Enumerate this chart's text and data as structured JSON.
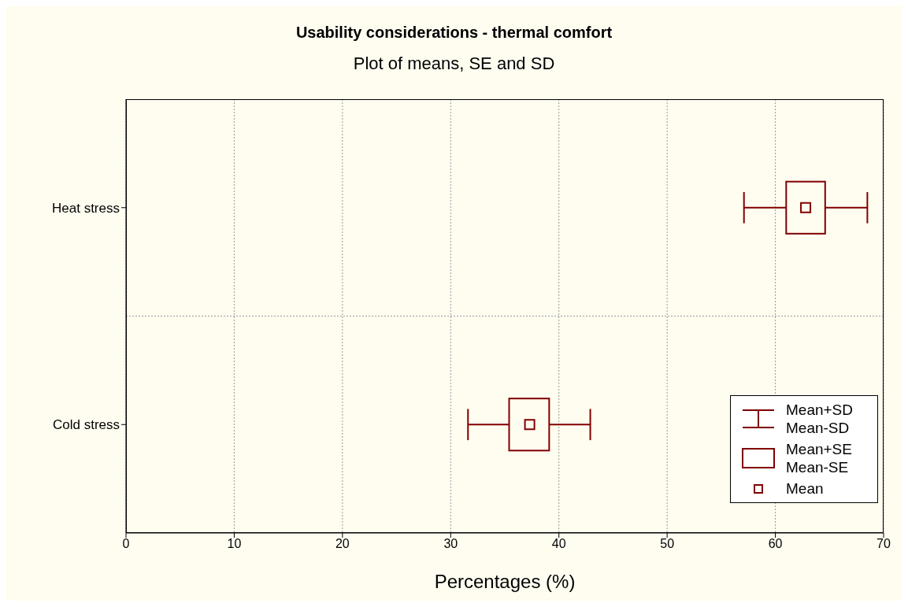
{
  "chart_data": {
    "type": "box",
    "orientation": "horizontal",
    "title": "Usability considerations - thermal comfort",
    "subtitle": "Plot of means, SE and SD",
    "xlabel": "Percentages (%)",
    "categories": [
      "Heat stress",
      "Cold stress"
    ],
    "boxes": [
      {
        "low": 57.1,
        "q1": 61.0,
        "mean": 62.8,
        "q3": 64.6,
        "high": 68.5
      },
      {
        "low": 31.6,
        "q1": 35.4,
        "mean": 37.3,
        "q3": 39.1,
        "high": 42.9
      }
    ],
    "color": "#800000",
    "xlim": [
      0,
      70
    ],
    "xticks": [
      0,
      10,
      20,
      30,
      40,
      50,
      60,
      70
    ],
    "grid": true,
    "marker": "square",
    "annotations": [
      "Mean+SD",
      "Mean-SD",
      "Mean+SE",
      "Mean-SE",
      "Mean"
    ]
  }
}
